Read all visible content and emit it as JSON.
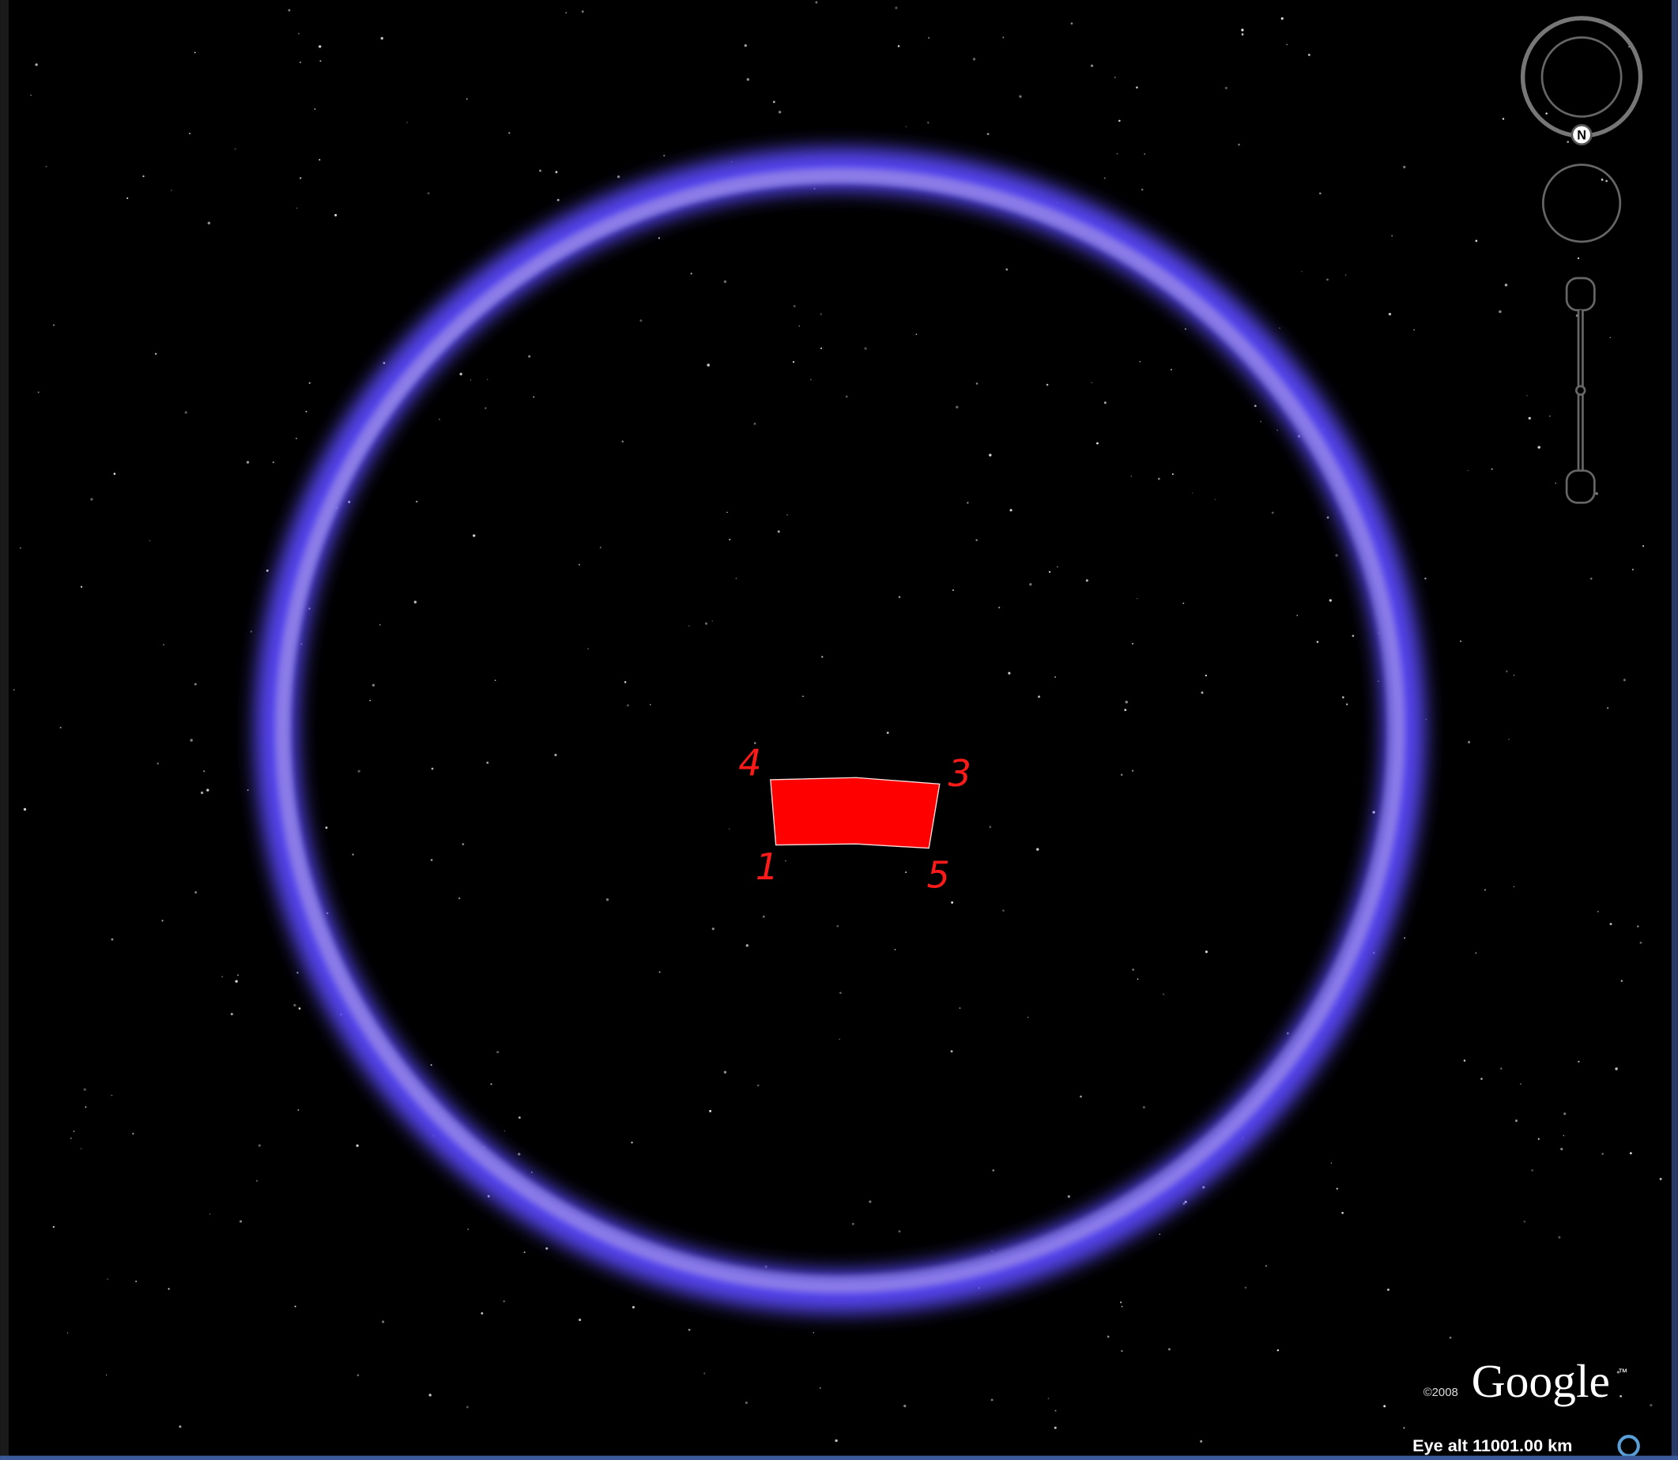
{
  "corner_labels": [
    "4",
    "3",
    "1",
    "5"
  ],
  "navigation": {
    "north": "N"
  },
  "branding": {
    "copyright": "©2008",
    "logo": "Google",
    "trademark": "™"
  },
  "status": {
    "eye_alt": "Eye alt 11001.00 km"
  }
}
